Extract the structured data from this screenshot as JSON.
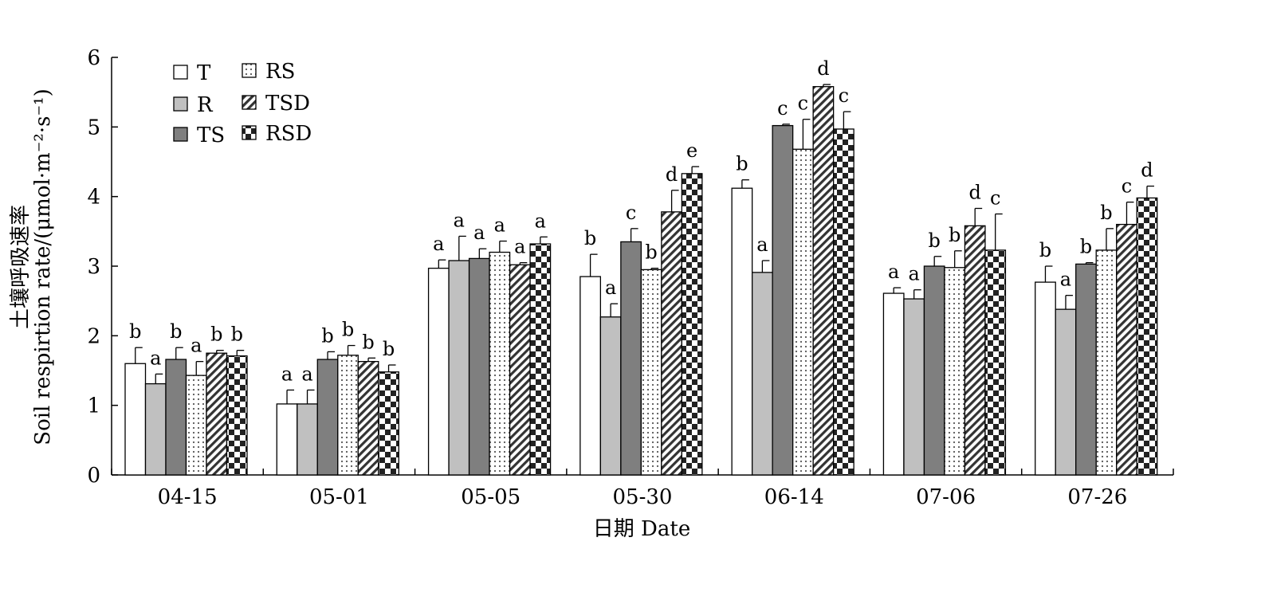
{
  "chart_data": {
    "type": "bar",
    "xlabel": "日期 Date",
    "ylabel_cn": "土壤呼吸速率",
    "ylabel_en": "Soil respirtion rate/(μmol·m⁻²·s⁻¹)",
    "ylim": [
      0,
      6
    ],
    "yticks": [
      "0",
      "1",
      "2",
      "3",
      "4",
      "5",
      "6"
    ],
    "categories": [
      "04-15",
      "05-01",
      "05-05",
      "05-30",
      "06-14",
      "07-06",
      "07-26"
    ],
    "legend_position": "top-left",
    "series": [
      {
        "name": "T",
        "pattern": "white",
        "values": [
          1.6,
          1.02,
          2.97,
          2.85,
          4.12,
          2.61,
          2.77
        ],
        "errors": [
          0.23,
          0.2,
          0.12,
          0.32,
          0.12,
          0.08,
          0.23
        ],
        "letters": [
          "b",
          "a",
          "a",
          "b",
          "b",
          "a",
          "b"
        ]
      },
      {
        "name": "R",
        "pattern": "lightgray",
        "values": [
          1.31,
          1.02,
          3.08,
          2.27,
          2.91,
          2.53,
          2.38
        ],
        "errors": [
          0.14,
          0.2,
          0.35,
          0.19,
          0.17,
          0.13,
          0.2
        ],
        "letters": [
          "a",
          "a",
          "a",
          "a",
          "a",
          "a",
          "a"
        ]
      },
      {
        "name": "TS",
        "pattern": "darkgray",
        "values": [
          1.66,
          1.66,
          3.11,
          3.35,
          5.02,
          3.0,
          3.03
        ],
        "errors": [
          0.17,
          0.11,
          0.14,
          0.19,
          0.02,
          0.14,
          0.02
        ],
        "letters": [
          "b",
          "b",
          "a",
          "c",
          "c",
          "b",
          "b"
        ]
      },
      {
        "name": "RS",
        "pattern": "dots",
        "values": [
          1.43,
          1.72,
          3.2,
          2.95,
          4.68,
          2.98,
          3.23
        ],
        "errors": [
          0.2,
          0.14,
          0.16,
          0.02,
          0.43,
          0.24,
          0.31
        ],
        "letters": [
          "a",
          "b",
          "a",
          "b",
          "c",
          "b",
          "b"
        ]
      },
      {
        "name": "TSD",
        "pattern": "hatch",
        "values": [
          1.75,
          1.63,
          3.02,
          3.78,
          5.58,
          3.58,
          3.6
        ],
        "errors": [
          0.04,
          0.05,
          0.03,
          0.31,
          0.03,
          0.25,
          0.32
        ],
        "letters": [
          "b",
          "b",
          "a",
          "d",
          "d",
          "d",
          "c"
        ]
      },
      {
        "name": "RSD",
        "pattern": "checker",
        "values": [
          1.71,
          1.48,
          3.32,
          4.33,
          4.97,
          3.23,
          3.98
        ],
        "errors": [
          0.08,
          0.1,
          0.1,
          0.1,
          0.25,
          0.52,
          0.17
        ],
        "letters": [
          "b",
          "b",
          "a",
          "e",
          "c",
          "c",
          "d"
        ]
      }
    ],
    "colors": {
      "T": "#ffffff",
      "R": "#c0c0c0",
      "TS": "#7f7f7f",
      "RS_dot": "#555555",
      "TSD_stripe": "#333333",
      "RSD_check": "#222222",
      "outline": "#000000"
    }
  }
}
